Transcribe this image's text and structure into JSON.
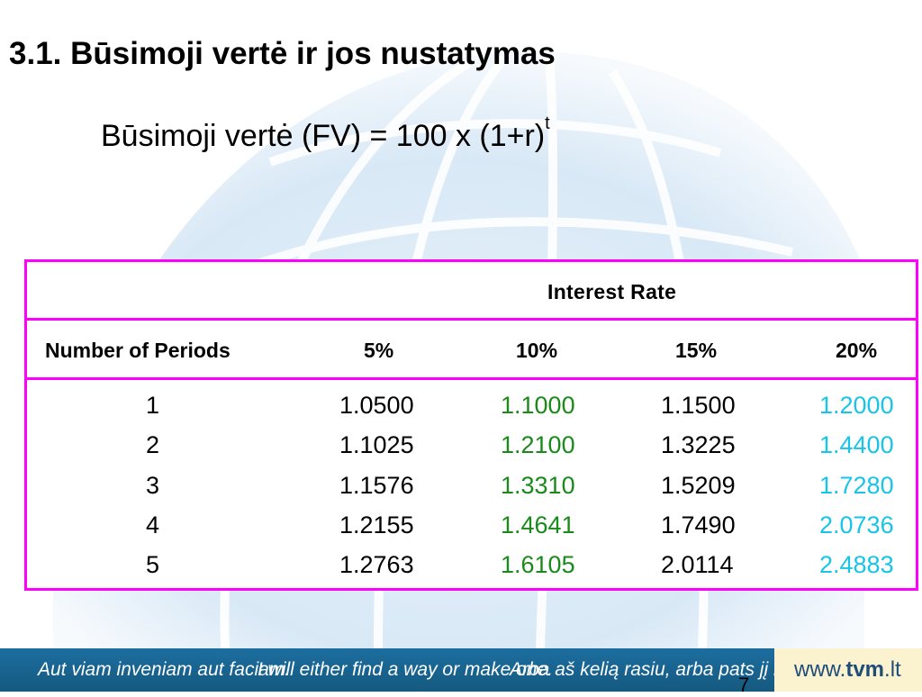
{
  "slide": {
    "title": "3.1. Būsimoji vertė ir jos nustatymas",
    "formula_main": "Būsimoji vertė (FV) = 100 x (1+r)",
    "formula_sup": "t",
    "page_number": "7"
  },
  "table": {
    "group_header": "Interest Rate",
    "headers": [
      "Number of Periods",
      "5%",
      "10%",
      "15%",
      "20%"
    ],
    "rows": [
      [
        "1",
        "1.0500",
        "1.1000",
        "1.1500",
        "1.2000"
      ],
      [
        "2",
        "1.1025",
        "1.2100",
        "1.3225",
        "1.4400"
      ],
      [
        "3",
        "1.1576",
        "1.3310",
        "1.5209",
        "1.7280"
      ],
      [
        "4",
        "1.2155",
        "1.4641",
        "1.7490",
        "2.0736"
      ],
      [
        "5",
        "1.2763",
        "1.6105",
        "2.0114",
        "2.4883"
      ]
    ],
    "colors": {
      "border": "#ff00ff",
      "col_10": "#1a8a1a",
      "col_20": "#18c4e8"
    }
  },
  "footer": {
    "motto_latin": "Aut viam inveniam aut faciam.",
    "motto_english": "I will either find a way or make one.",
    "motto_lithuanian": "Arba aš kelią rasiu, arba pats jį nutiesiu.",
    "site_prefix": "www.",
    "site_name": "tvm",
    "site_suffix": ".lt",
    "colors": {
      "band": "#1c6ea0",
      "site_box": "#fbf2cf"
    }
  }
}
